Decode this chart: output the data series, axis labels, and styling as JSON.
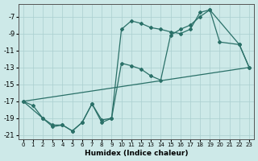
{
  "xlabel": "Humidex (Indice chaleur)",
  "bg_color": "#cde9e8",
  "grid_color": "#aacfcf",
  "line_color": "#2a7068",
  "xlim": [
    -0.5,
    23.5
  ],
  "ylim": [
    -21.5,
    -5.5
  ],
  "xticks": [
    0,
    1,
    2,
    3,
    4,
    5,
    6,
    7,
    8,
    9,
    10,
    11,
    12,
    13,
    14,
    15,
    16,
    17,
    18,
    19,
    20,
    21,
    22,
    23
  ],
  "yticks": [
    -21,
    -19,
    -17,
    -15,
    -13,
    -11,
    -9,
    -7
  ],
  "line1_x": [
    0,
    1,
    2,
    3,
    4,
    5,
    6,
    7,
    8,
    9,
    10,
    11,
    12,
    13,
    14,
    15,
    16,
    17,
    18,
    19,
    22,
    23
  ],
  "line1_y": [
    -17.0,
    -17.5,
    -19.0,
    -20.0,
    -19.8,
    -20.5,
    -19.5,
    -17.3,
    -19.2,
    -19.0,
    -8.5,
    -7.5,
    -7.8,
    -8.3,
    -8.5,
    -8.8,
    -9.0,
    -8.5,
    -6.5,
    -6.2,
    -10.3,
    -13.0
  ],
  "line2_x": [
    0,
    2,
    3,
    4,
    5,
    6,
    7,
    8,
    9,
    10,
    11,
    12,
    13,
    14,
    15,
    16,
    17,
    18,
    19,
    20,
    22,
    23
  ],
  "line2_y": [
    -17.0,
    -19.0,
    -19.8,
    -19.8,
    -20.5,
    -19.5,
    -17.3,
    -19.5,
    -19.0,
    -12.5,
    -12.8,
    -13.2,
    -14.0,
    -14.5,
    -9.2,
    -8.5,
    -8.0,
    -7.0,
    -6.2,
    -10.0,
    -10.3,
    -13.0
  ],
  "line3_x": [
    0,
    23
  ],
  "line3_y": [
    -17.0,
    -13.0
  ]
}
